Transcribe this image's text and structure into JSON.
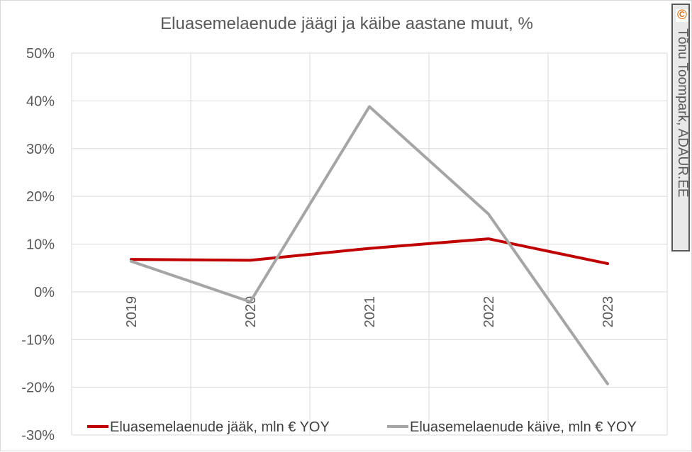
{
  "chart_data": {
    "type": "line",
    "title": "Eluasemelaenude jäägi ja käibe aastane muut, %",
    "categories": [
      "2019",
      "2020",
      "2021",
      "2022",
      "2023"
    ],
    "series": [
      {
        "name": "Eluasemelaenude jääk, mln € YOY",
        "values": [
          6.8,
          6.6,
          9.1,
          11.1,
          5.9
        ],
        "color": "#c00000"
      },
      {
        "name": "Eluasemelaenude käive, mln € YOY",
        "values": [
          6.4,
          -2.1,
          38.8,
          16.3,
          -19.3
        ],
        "color": "#a5a5a5"
      }
    ],
    "ylim": [
      -30,
      50
    ],
    "yticks": [
      -30,
      -20,
      -10,
      0,
      10,
      20,
      30,
      40,
      50
    ],
    "ytick_labels": [
      "-30%",
      "-20%",
      "-10%",
      "0%",
      "10%",
      "20%",
      "30%",
      "40%",
      "50%"
    ],
    "xlabel": "",
    "ylabel": "",
    "grid": true,
    "legend": "bottom"
  },
  "watermark": {
    "icon": "copyright-icon",
    "icon_glyph": "©",
    "text": "Tõnu Toompark, ADAUR.EE"
  }
}
